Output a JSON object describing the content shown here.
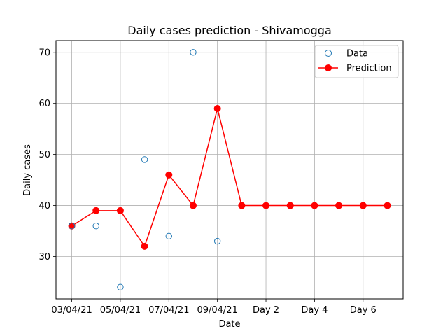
{
  "chart_data": {
    "type": "line",
    "title": "Daily cases prediction - Shivamogga",
    "xlabel": "Date",
    "ylabel": "Daily cases",
    "x_ticks": [
      "03/04/21",
      "05/04/21",
      "07/04/21",
      "09/04/21",
      "Day 2",
      "Day 4",
      "Day 6"
    ],
    "x_tick_positions": [
      0,
      2,
      4,
      6,
      8,
      10,
      12
    ],
    "y_ticks": [
      30,
      40,
      50,
      60,
      70
    ],
    "ylim": [
      21.7,
      72.3
    ],
    "xlim": [
      -0.65,
      13.65
    ],
    "grid": true,
    "legend_position": "upper right",
    "colors": {
      "data": "#1f77b4",
      "prediction": "#ff0000"
    },
    "series": [
      {
        "name": "Data",
        "style": "scatter-hollow",
        "x": [
          0,
          1,
          2,
          3,
          4,
          5,
          6
        ],
        "values": [
          36,
          36,
          24,
          49,
          34,
          70,
          33
        ]
      },
      {
        "name": "Prediction",
        "style": "line-marker",
        "x": [
          0,
          1,
          2,
          3,
          4,
          5,
          6,
          7,
          8,
          9,
          10,
          11,
          12,
          13
        ],
        "values": [
          36,
          39,
          39,
          32,
          46,
          40,
          59,
          40,
          40,
          40,
          40,
          40,
          40,
          40
        ]
      }
    ]
  }
}
